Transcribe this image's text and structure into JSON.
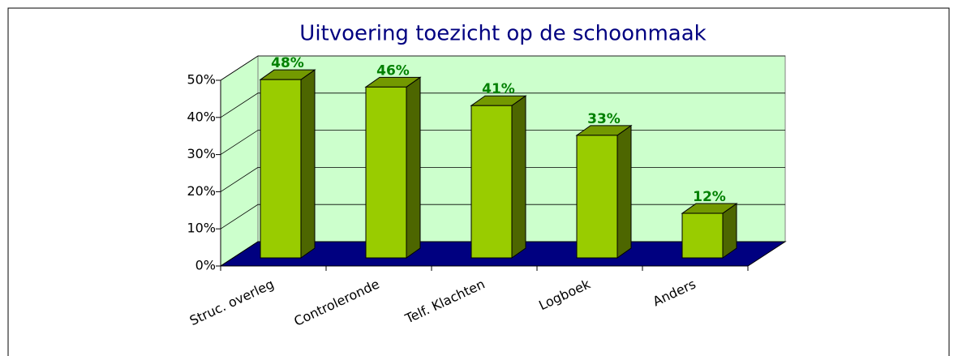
{
  "chart_data": {
    "type": "bar3d",
    "title": "Uitvoering toezicht op de schoonmaak",
    "categories": [
      "Struc. overleg",
      "Controleronde",
      "Telf. Klachten",
      "Logboek",
      "Anders"
    ],
    "values": [
      48,
      46,
      41,
      33,
      12
    ],
    "value_labels": [
      "48%",
      "46%",
      "41%",
      "33%",
      "12%"
    ],
    "color": "#99cc00",
    "ylim": [
      0,
      50
    ],
    "yticks": [
      {
        "value": 0,
        "label": "0%"
      },
      {
        "value": 10,
        "label": "10%"
      },
      {
        "value": 20,
        "label": "20%"
      },
      {
        "value": 30,
        "label": "30%"
      },
      {
        "value": 40,
        "label": "40%"
      },
      {
        "value": 50,
        "label": "50%"
      }
    ],
    "grid": true
  }
}
